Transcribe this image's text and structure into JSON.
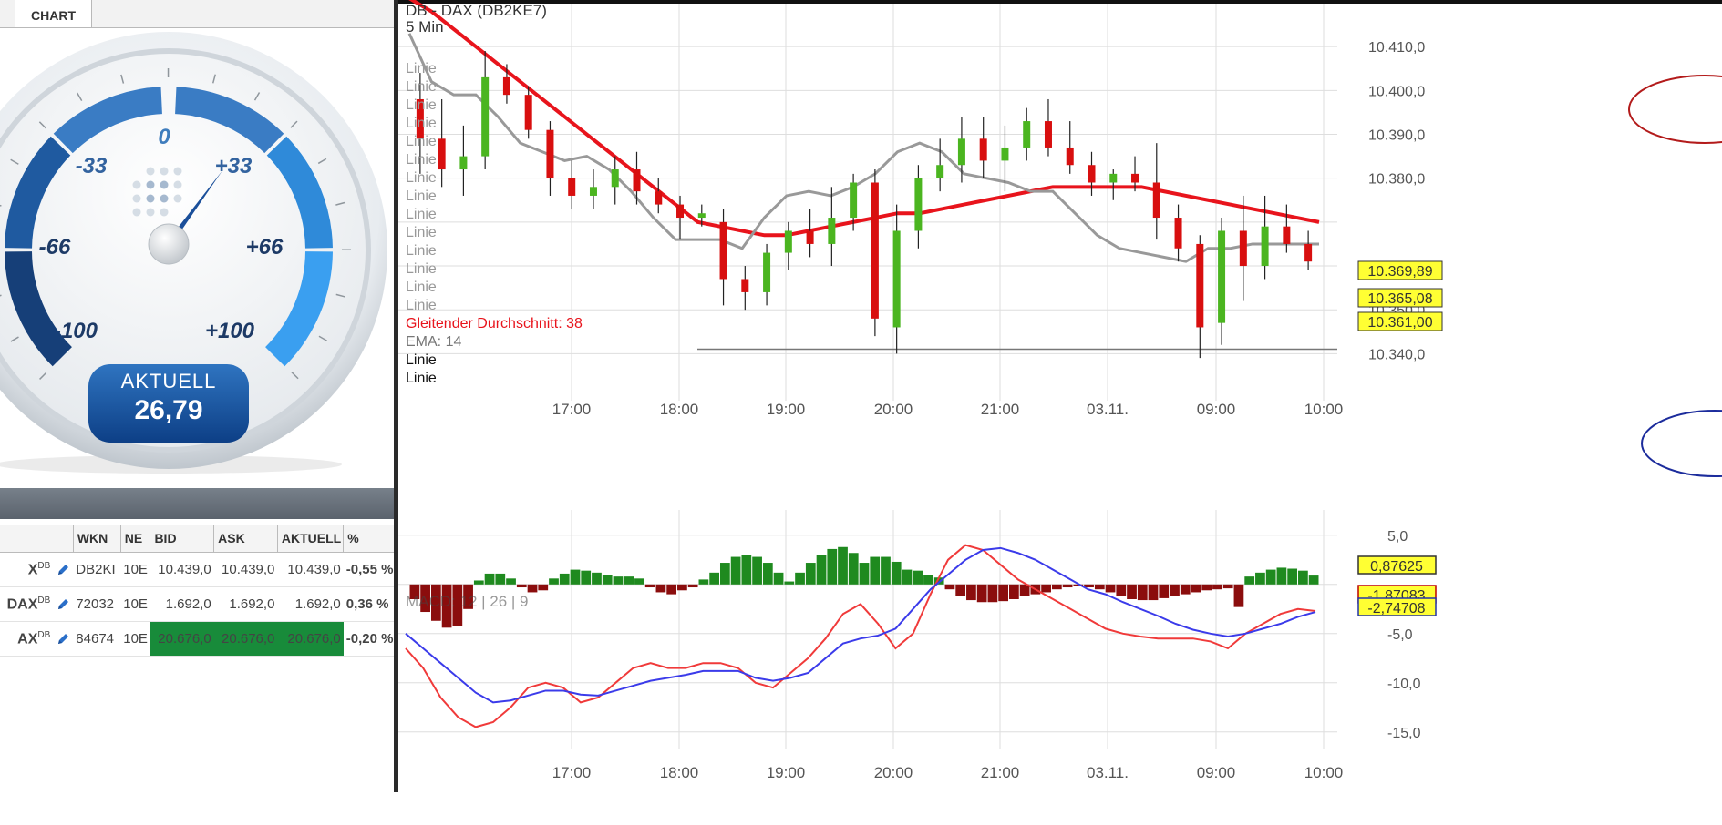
{
  "tab": {
    "label": "CHART"
  },
  "gauge": {
    "labels": [
      "-100",
      "-66",
      "-33",
      "0",
      "+33",
      "+66",
      "+100"
    ],
    "needle_value": 26.79,
    "current_label": "AKTUELL",
    "current_value": "26,79"
  },
  "table": {
    "headers": [
      "WKN",
      "NE",
      "BID",
      "ASK",
      "AKTUELL",
      "%"
    ],
    "rows": [
      {
        "name": "X",
        "sup": "DB",
        "wkn": "DB2KI",
        "ne": "10E",
        "bid": "10.439,0",
        "ask": "10.439,0",
        "akt": "10.439,0",
        "pct": "-0,55 %",
        "dir": "neg",
        "hl": false
      },
      {
        "name": "DAX",
        "sup": "DB",
        "wkn": "72032",
        "ne": "10E",
        "bid": "1.692,0",
        "ask": "1.692,0",
        "akt": "1.692,0",
        "pct": "0,36 %",
        "dir": "pos",
        "hl": false
      },
      {
        "name": "AX",
        "sup": "DB",
        "wkn": "84674",
        "ne": "10E",
        "bid": "20.676,0",
        "ask": "20.676,0",
        "akt": "20.676,0",
        "pct": "-0,20 %",
        "dir": "neg",
        "hl": true
      }
    ]
  },
  "chart_data": [
    {
      "type": "candlestick",
      "title": "DB - DAX (DB2KE7)",
      "subtitle": "5 Min",
      "x_ticks": [
        "17:00",
        "18:00",
        "19:00",
        "20:00",
        "21:00",
        "03.11.",
        "09:00",
        "10:00"
      ],
      "y_ticks": [
        "10.410,0",
        "10.400,0",
        "10.390,0",
        "10.380,0",
        "10.350,0",
        "10.340,0"
      ],
      "ylim": [
        10338,
        10420
      ],
      "legend": [
        "Linie",
        "Linie",
        "Linie",
        "Linie",
        "Linie",
        "Linie",
        "Linie",
        "Linie",
        "Linie",
        "Linie",
        "Linie",
        "Linie",
        "Linie",
        "Linie",
        "Gleitender Durchschnitt: 38",
        "EMA: 14",
        "Linie",
        "Linie"
      ],
      "price_badges": [
        "10.369,89",
        "10.365,08",
        "10.361,00"
      ],
      "horizontal_line": 10341,
      "highlighted_ticks": [
        "10.400,0",
        "10.340,0"
      ],
      "series": [
        {
          "name": "Gleitender Durchschnitt: 38",
          "color": "#e8141c",
          "values": [
            10421,
            10418,
            10414,
            10410,
            10406,
            10402,
            10398,
            10394,
            10390,
            10386,
            10382,
            10378,
            10374,
            10370,
            10369,
            10368,
            10367,
            10367,
            10368,
            10369,
            10370,
            10371,
            10372,
            10372,
            10373,
            10374,
            10375,
            10376,
            10377,
            10378,
            10378,
            10378,
            10378,
            10378,
            10377,
            10376,
            10375,
            10374,
            10373,
            10372,
            10371,
            10370
          ]
        },
        {
          "name": "EMA: 14",
          "color": "#999999",
          "values": [
            10413,
            10402,
            10399,
            10399,
            10394,
            10388,
            10386,
            10384,
            10385,
            10382,
            10377,
            10371,
            10366,
            10366,
            10366,
            10364,
            10371,
            10376,
            10377,
            10376,
            10378,
            10381,
            10386,
            10388,
            10386,
            10381,
            10380,
            10379,
            10377,
            10377,
            10372,
            10367,
            10364,
            10363,
            10362,
            10361,
            10364,
            10364,
            10365,
            10365,
            10365,
            10365
          ]
        }
      ],
      "candles": [
        {
          "x": 0,
          "o": 10398,
          "h": 10404,
          "l": 10381,
          "c": 10389
        },
        {
          "x": 1,
          "o": 10389,
          "h": 10398,
          "l": 10378,
          "c": 10382
        },
        {
          "x": 2,
          "o": 10382,
          "h": 10392,
          "l": 10376,
          "c": 10385
        },
        {
          "x": 3,
          "o": 10385,
          "h": 10409,
          "l": 10382,
          "c": 10403
        },
        {
          "x": 4,
          "o": 10403,
          "h": 10406,
          "l": 10397,
          "c": 10399
        },
        {
          "x": 5,
          "o": 10399,
          "h": 10401,
          "l": 10389,
          "c": 10391
        },
        {
          "x": 6,
          "o": 10391,
          "h": 10393,
          "l": 10376,
          "c": 10380
        },
        {
          "x": 7,
          "o": 10380,
          "h": 10384,
          "l": 10373,
          "c": 10376
        },
        {
          "x": 8,
          "o": 10376,
          "h": 10382,
          "l": 10373,
          "c": 10378
        },
        {
          "x": 9,
          "o": 10378,
          "h": 10385,
          "l": 10374,
          "c": 10382
        },
        {
          "x": 10,
          "o": 10382,
          "h": 10386,
          "l": 10374,
          "c": 10377
        },
        {
          "x": 11,
          "o": 10377,
          "h": 10380,
          "l": 10372,
          "c": 10374
        },
        {
          "x": 12,
          "o": 10374,
          "h": 10376,
          "l": 10366,
          "c": 10371
        },
        {
          "x": 13,
          "o": 10371,
          "h": 10374,
          "l": 10369,
          "c": 10372
        },
        {
          "x": 14,
          "o": 10370,
          "h": 10373,
          "l": 10351,
          "c": 10357
        },
        {
          "x": 15,
          "o": 10357,
          "h": 10360,
          "l": 10350,
          "c": 10354
        },
        {
          "x": 16,
          "o": 10354,
          "h": 10365,
          "l": 10351,
          "c": 10363
        },
        {
          "x": 17,
          "o": 10363,
          "h": 10370,
          "l": 10359,
          "c": 10368
        },
        {
          "x": 18,
          "o": 10368,
          "h": 10373,
          "l": 10362,
          "c": 10365
        },
        {
          "x": 19,
          "o": 10365,
          "h": 10378,
          "l": 10360,
          "c": 10371
        },
        {
          "x": 20,
          "o": 10371,
          "h": 10381,
          "l": 10368,
          "c": 10379
        },
        {
          "x": 21,
          "o": 10379,
          "h": 10382,
          "l": 10344,
          "c": 10348
        },
        {
          "x": 22,
          "o": 10346,
          "h": 10374,
          "l": 10340,
          "c": 10368
        },
        {
          "x": 23,
          "o": 10368,
          "h": 10383,
          "l": 10364,
          "c": 10380
        },
        {
          "x": 24,
          "o": 10380,
          "h": 10389,
          "l": 10377,
          "c": 10383
        },
        {
          "x": 25,
          "o": 10383,
          "h": 10394,
          "l": 10379,
          "c": 10389
        },
        {
          "x": 26,
          "o": 10389,
          "h": 10394,
          "l": 10380,
          "c": 10384
        },
        {
          "x": 27,
          "o": 10384,
          "h": 10392,
          "l": 10377,
          "c": 10387
        },
        {
          "x": 28,
          "o": 10387,
          "h": 10396,
          "l": 10384,
          "c": 10393
        },
        {
          "x": 29,
          "o": 10393,
          "h": 10398,
          "l": 10385,
          "c": 10387
        },
        {
          "x": 30,
          "o": 10387,
          "h": 10393,
          "l": 10381,
          "c": 10383
        },
        {
          "x": 31,
          "o": 10383,
          "h": 10386,
          "l": 10376,
          "c": 10379
        },
        {
          "x": 32,
          "o": 10379,
          "h": 10382,
          "l": 10375,
          "c": 10381
        },
        {
          "x": 33,
          "o": 10381,
          "h": 10385,
          "l": 10377,
          "c": 10379
        },
        {
          "x": 34,
          "o": 10379,
          "h": 10388,
          "l": 10366,
          "c": 10371
        },
        {
          "x": 35,
          "o": 10371,
          "h": 10374,
          "l": 10361,
          "c": 10364
        },
        {
          "x": 36,
          "o": 10365,
          "h": 10367,
          "l": 10339,
          "c": 10346
        },
        {
          "x": 37,
          "o": 10347,
          "h": 10371,
          "l": 10342,
          "c": 10368
        },
        {
          "x": 38,
          "o": 10368,
          "h": 10376,
          "l": 10352,
          "c": 10360
        },
        {
          "x": 39,
          "o": 10360,
          "h": 10376,
          "l": 10357,
          "c": 10369
        },
        {
          "x": 40,
          "o": 10369,
          "h": 10374,
          "l": 10363,
          "c": 10365
        },
        {
          "x": 41,
          "o": 10365,
          "h": 10368,
          "l": 10359,
          "c": 10361
        }
      ]
    },
    {
      "type": "bar",
      "title": "MACD",
      "legend": "MACD: 12 | 26 | 9",
      "x_ticks": [
        "17:00",
        "18:00",
        "19:00",
        "20:00",
        "21:00",
        "03.11.",
        "09:00",
        "10:00"
      ],
      "y_ticks": [
        "5,0",
        "-5,0",
        "-10,0",
        "-15,0"
      ],
      "ylim": [
        -16.5,
        6
      ],
      "badges": [
        "0,87625",
        "-1,87083",
        "-2,74708"
      ],
      "histogram": [
        -1.5,
        -2.8,
        -3.7,
        -4.4,
        -4.2,
        -2.5,
        0.4,
        1.1,
        1.1,
        0.6,
        -0.3,
        -0.8,
        -0.6,
        0.6,
        1.1,
        1.5,
        1.4,
        1.2,
        1.0,
        0.8,
        0.8,
        0.6,
        -0.3,
        -0.8,
        -1.0,
        -0.6,
        -0.3,
        0.5,
        1.2,
        2.2,
        2.8,
        3.0,
        2.8,
        2.2,
        1.2,
        0.3,
        1.2,
        2.2,
        3.0,
        3.6,
        3.8,
        3.2,
        2.2,
        2.8,
        2.8,
        2.3,
        1.5,
        1.4,
        1.0,
        0.7,
        -0.5,
        -1.2,
        -1.6,
        -1.8,
        -1.8,
        -1.7,
        -1.5,
        -1.2,
        -1.0,
        -0.8,
        -0.5,
        -0.3,
        -0.2,
        -0.3,
        -0.5,
        -0.8,
        -1.2,
        -1.5,
        -1.6,
        -1.6,
        -1.4,
        -1.2,
        -1.0,
        -0.8,
        -0.6,
        -0.5,
        -0.4,
        -2.3,
        0.8,
        1.2,
        1.5,
        1.7,
        1.6,
        1.4,
        0.9
      ],
      "macd_line": [
        -6.5,
        -8.5,
        -11.5,
        -13.5,
        -14.5,
        -14.0,
        -12.5,
        -10.5,
        -10.0,
        -10.5,
        -12.0,
        -11.5,
        -10.0,
        -8.5,
        -8.0,
        -8.5,
        -8.5,
        -8.0,
        -8.0,
        -8.5,
        -10.0,
        -10.5,
        -9.0,
        -7.5,
        -5.5,
        -3.0,
        -2.0,
        -4.0,
        -6.5,
        -5.0,
        -1.0,
        2.5,
        4.0,
        3.5,
        2.0,
        0.5,
        -0.5,
        -1.5,
        -2.5,
        -3.5,
        -4.5,
        -5.0,
        -5.3,
        -5.5,
        -5.5,
        -5.5,
        -5.8,
        -6.5,
        -5.0,
        -4.0,
        -3.0,
        -2.5,
        -2.7
      ],
      "signal_line": [
        -5.0,
        -6.5,
        -8.0,
        -9.5,
        -11.0,
        -12.0,
        -11.8,
        -11.3,
        -10.8,
        -10.8,
        -11.2,
        -11.3,
        -10.8,
        -10.3,
        -9.8,
        -9.5,
        -9.2,
        -8.8,
        -8.8,
        -8.8,
        -9.5,
        -9.8,
        -9.5,
        -9.0,
        -7.5,
        -6.0,
        -5.5,
        -5.2,
        -4.5,
        -2.5,
        -0.5,
        1.0,
        2.5,
        3.5,
        3.7,
        3.2,
        2.5,
        1.5,
        0.5,
        -0.5,
        -1.0,
        -1.8,
        -2.5,
        -3.2,
        -4.0,
        -4.6,
        -5.0,
        -5.3,
        -5.0,
        -4.5,
        -4.0,
        -3.3,
        -2.8
      ]
    }
  ]
}
